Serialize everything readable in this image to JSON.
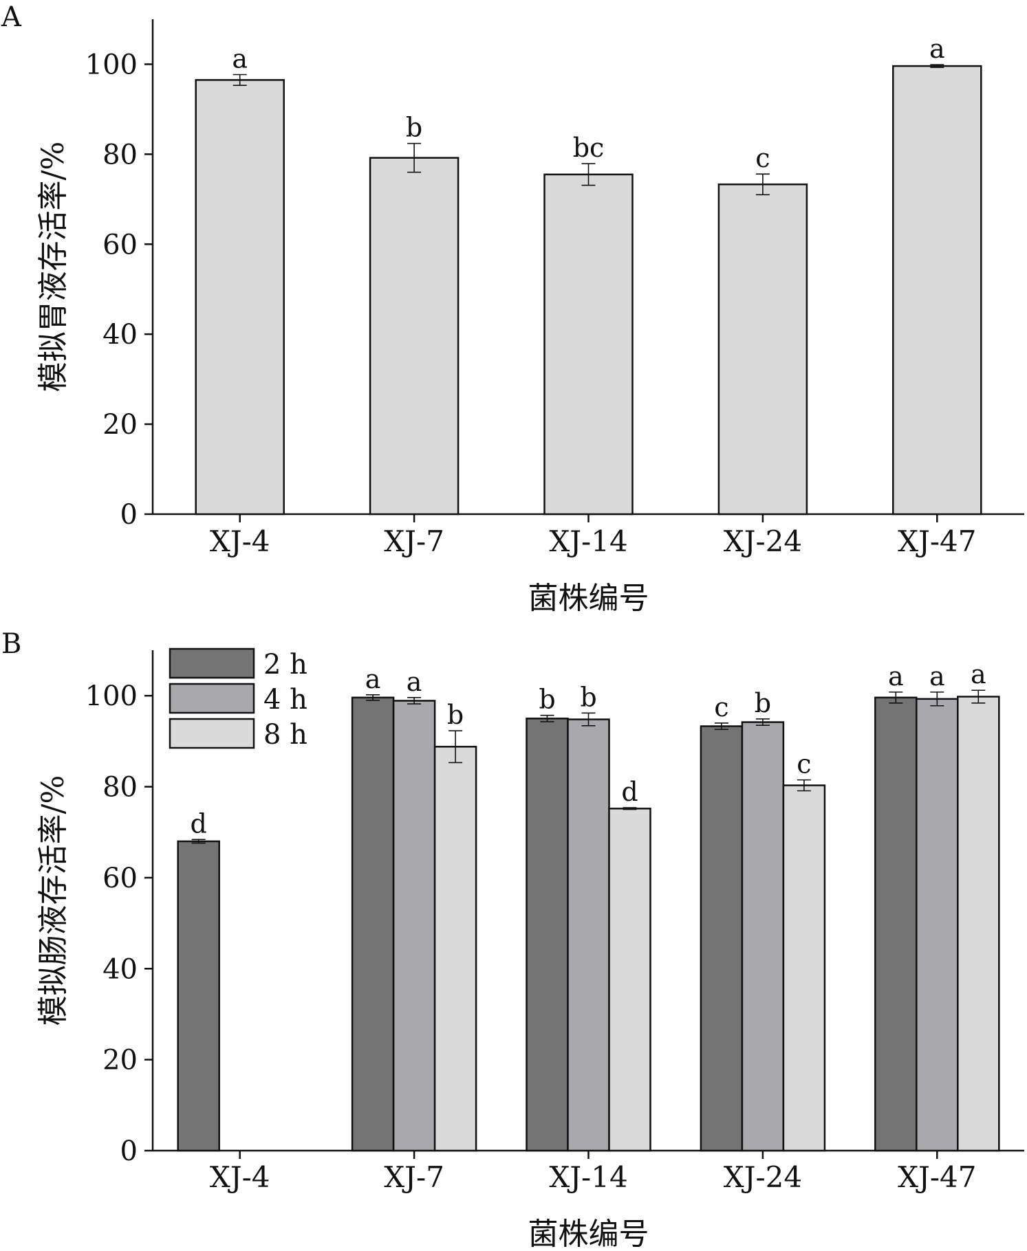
{
  "chart_data": [
    {
      "panel_label": "A",
      "type": "bar",
      "categories": [
        "XJ-4",
        "XJ-7",
        "XJ-14",
        "XJ-24",
        "XJ-47"
      ],
      "values": [
        96.5,
        79.2,
        75.5,
        73.3,
        99.6
      ],
      "errors": [
        1.2,
        3.2,
        2.4,
        2.3,
        0.3
      ],
      "significance": [
        "a",
        "b",
        "bc",
        "c",
        "a"
      ],
      "xlabel": "菌株编号",
      "ylabel": "模拟胃液存活率/%",
      "ylim": [
        0,
        110
      ],
      "yticks": [
        0,
        20,
        40,
        60,
        80,
        100
      ],
      "grid": false,
      "colors": {
        "bar": "#dadada",
        "edge": "#111111"
      }
    },
    {
      "panel_label": "B",
      "type": "bar",
      "categories": [
        "XJ-4",
        "XJ-7",
        "XJ-14",
        "XJ-24",
        "XJ-47"
      ],
      "series": [
        {
          "name": "2 h",
          "color": "#747474",
          "values": [
            68.0,
            99.6,
            95.0,
            93.3,
            99.6
          ],
          "errors": [
            0.4,
            0.6,
            0.7,
            0.7,
            1.2
          ],
          "significance": [
            "d",
            "a",
            "b",
            "c",
            "a"
          ]
        },
        {
          "name": "4 h",
          "color": "#a9a9ad",
          "values": [
            null,
            98.9,
            94.8,
            94.2,
            99.3
          ],
          "errors": [
            null,
            0.7,
            1.4,
            0.7,
            1.5
          ],
          "significance": [
            null,
            "a",
            "b",
            "b",
            "a"
          ]
        },
        {
          "name": "8 h",
          "color": "#dadada",
          "values": [
            null,
            88.8,
            75.2,
            80.3,
            99.8
          ],
          "errors": [
            null,
            3.5,
            0.2,
            1.2,
            1.4
          ],
          "significance": [
            null,
            "b",
            "d",
            "c",
            "a"
          ]
        }
      ],
      "xlabel": "菌株编号",
      "ylabel": "模拟肠液存活率/%",
      "ylim": [
        0,
        110
      ],
      "yticks": [
        0,
        20,
        40,
        60,
        80,
        100
      ],
      "grid": false,
      "legend": "top-left"
    }
  ]
}
